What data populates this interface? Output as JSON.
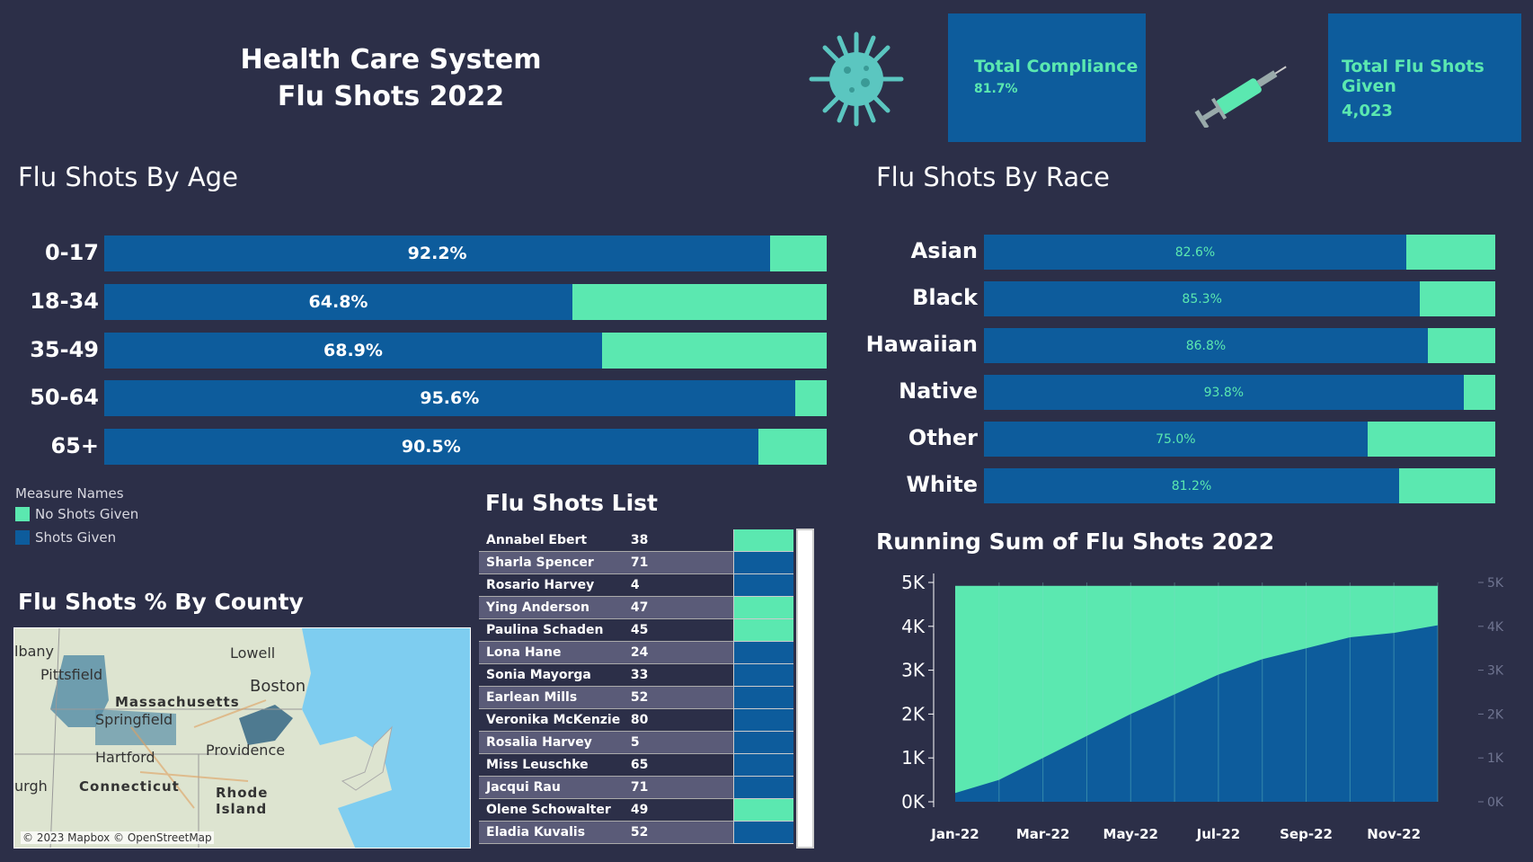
{
  "header": {
    "title_line1": "Health Care System",
    "title_line2": "Flu Shots 2022"
  },
  "icons": {
    "virus": "virus-icon",
    "syringe": "syringe-icon"
  },
  "kpis": {
    "compliance_label": "Total Compliance",
    "compliance_value": "81.7%",
    "total_label": "Total Flu Shots Given",
    "total_value": "4,023"
  },
  "colors": {
    "background": "#2c2f48",
    "shots_given": "#0d5c9c",
    "no_shots": "#5be8b0"
  },
  "age": {
    "title": "Flu Shots By Age",
    "rows": [
      {
        "label": "0-17",
        "pct_text": "92.2%",
        "pct": 92.2
      },
      {
        "label": "18-34",
        "pct_text": "64.8%",
        "pct": 64.8
      },
      {
        "label": "35-49",
        "pct_text": "68.9%",
        "pct": 68.9
      },
      {
        "label": "50-64",
        "pct_text": "95.6%",
        "pct": 95.6
      },
      {
        "label": "65+",
        "pct_text": "90.5%",
        "pct": 90.5
      }
    ]
  },
  "race": {
    "title": "Flu Shots By Race",
    "rows": [
      {
        "label": "Asian",
        "pct_text": "82.6%",
        "pct": 82.6
      },
      {
        "label": "Black",
        "pct_text": "85.3%",
        "pct": 85.3
      },
      {
        "label": "Hawaiian",
        "pct_text": "86.8%",
        "pct": 86.8
      },
      {
        "label": "Native",
        "pct_text": "93.8%",
        "pct": 93.8
      },
      {
        "label": "Other",
        "pct_text": "75.0%",
        "pct": 75.0
      },
      {
        "label": "White",
        "pct_text": "81.2%",
        "pct": 81.2
      }
    ]
  },
  "legend": {
    "title": "Measure Names",
    "items": [
      "No Shots Given",
      "Shots Given"
    ]
  },
  "map": {
    "title": "Flu Shots % By County",
    "labels": [
      "lbany",
      "Lowell",
      "Pittsfield",
      "Boston",
      "Massachusetts",
      "Springfield",
      "Hartford",
      "Providence",
      "urgh",
      "Connecticut",
      "Rhode",
      "Island"
    ],
    "attribution": "© 2023 Mapbox © OpenStreetMap"
  },
  "list": {
    "title": "Flu Shots List",
    "rows": [
      {
        "name": "Annabel Ebert",
        "count": "38",
        "status": "none"
      },
      {
        "name": "Sharla Spencer",
        "count": "71",
        "status": "given"
      },
      {
        "name": "Rosario Harvey",
        "count": "4",
        "status": "given"
      },
      {
        "name": "Ying Anderson",
        "count": "47",
        "status": "none"
      },
      {
        "name": "Paulina Schaden",
        "count": "45",
        "status": "none"
      },
      {
        "name": "Lona Hane",
        "count": "24",
        "status": "given"
      },
      {
        "name": "Sonia Mayorga",
        "count": "33",
        "status": "given"
      },
      {
        "name": "Earlean Mills",
        "count": "52",
        "status": "given"
      },
      {
        "name": "Veronika McKenzie",
        "count": "80",
        "status": "given"
      },
      {
        "name": "Rosalia Harvey",
        "count": "5",
        "status": "given"
      },
      {
        "name": "Miss Leuschke",
        "count": "65",
        "status": "given"
      },
      {
        "name": "Jacqui Rau",
        "count": "71",
        "status": "given"
      },
      {
        "name": "Olene Schowalter",
        "count": "49",
        "status": "none"
      },
      {
        "name": "Eladia Kuvalis",
        "count": "52",
        "status": "given"
      }
    ]
  },
  "chart_data": [
    {
      "type": "bar",
      "title": "Flu Shots By Age",
      "categories": [
        "0-17",
        "18-34",
        "35-49",
        "50-64",
        "65+"
      ],
      "series": [
        {
          "name": "Shots Given",
          "values": [
            92.2,
            64.8,
            68.9,
            95.6,
            90.5
          ]
        },
        {
          "name": "No Shots Given",
          "values": [
            7.8,
            35.2,
            31.1,
            4.4,
            9.5
          ]
        }
      ]
    },
    {
      "type": "bar",
      "title": "Flu Shots By Race",
      "categories": [
        "Asian",
        "Black",
        "Hawaiian",
        "Native",
        "Other",
        "White"
      ],
      "series": [
        {
          "name": "Shots Given",
          "values": [
            82.6,
            85.3,
            86.8,
            93.8,
            75.0,
            81.2
          ]
        },
        {
          "name": "No Shots Given",
          "values": [
            17.4,
            14.7,
            13.2,
            6.2,
            25.0,
            18.8
          ]
        }
      ]
    },
    {
      "type": "area",
      "title": "Running Sum of Flu Shots 2022",
      "x": [
        "Jan-22",
        "Feb-22",
        "Mar-22",
        "Apr-22",
        "May-22",
        "Jun-22",
        "Jul-22",
        "Aug-22",
        "Sep-22",
        "Oct-22",
        "Nov-22",
        "Dec-22"
      ],
      "series": [
        {
          "name": "Shots Given",
          "values": [
            200,
            500,
            1000,
            1500,
            2000,
            2450,
            2900,
            3250,
            3500,
            3750,
            3850,
            4023
          ]
        },
        {
          "name": "Total",
          "values": [
            4923,
            4923,
            4923,
            4923,
            4923,
            4923,
            4923,
            4923,
            4923,
            4923,
            4923,
            4923
          ]
        }
      ],
      "y_ticks": [
        "0K",
        "1K",
        "2K",
        "3K",
        "4K",
        "5K"
      ],
      "x_tick_labels": [
        "Jan-22",
        "Mar-22",
        "May-22",
        "Jul-22",
        "Sep-22",
        "Nov-22"
      ],
      "ylim": [
        0,
        5000
      ]
    }
  ]
}
